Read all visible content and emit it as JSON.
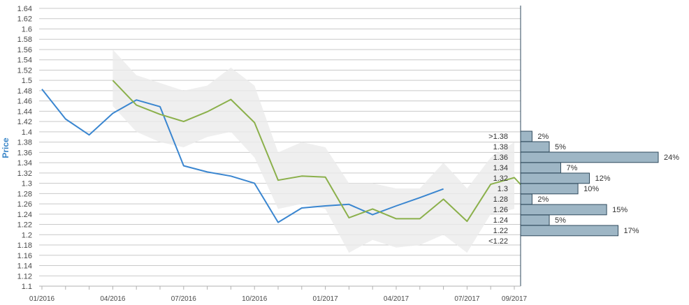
{
  "chart_data": {
    "type": "line",
    "ylabel": "Price",
    "ylim": [
      1.1,
      1.64
    ],
    "y_ticks": [
      "1.1",
      "1.12",
      "1.14",
      "1.16",
      "1.18",
      "1.2",
      "1.22",
      "1.24",
      "1.26",
      "1.28",
      "1.3",
      "1.32",
      "1.34",
      "1.36",
      "1.38",
      "1.4",
      "1.42",
      "1.44",
      "1.46",
      "1.48",
      "1.5",
      "1.52",
      "1.54",
      "1.56",
      "1.58",
      "1.6",
      "1.62",
      "1.64"
    ],
    "x_ticks": [
      "01/2016",
      "04/2016",
      "07/2016",
      "10/2016",
      "01/2017",
      "04/2017",
      "07/2017",
      "09/2017"
    ],
    "grid": "horizontal",
    "colors": {
      "blue": "#3a86d0",
      "green": "#8bb04b",
      "band": "#ebebeb",
      "bar_fill": "#9eb6c5",
      "bar_stroke": "#2f4a5c"
    },
    "series": [
      {
        "color": "#3a86d0",
        "points": [
          [
            "2016-01",
            1.483
          ],
          [
            "2016-02",
            1.425
          ],
          [
            "2016-03",
            1.394
          ],
          [
            "2016-04",
            1.436
          ],
          [
            "2016-05",
            1.462
          ],
          [
            "2016-06",
            1.449
          ],
          [
            "2016-07",
            1.334
          ],
          [
            "2016-08",
            1.322
          ],
          [
            "2016-09",
            1.314
          ],
          [
            "2016-10",
            1.3
          ],
          [
            "2016-11",
            1.224
          ],
          [
            "2016-12",
            1.252
          ],
          [
            "2017-01",
            1.256
          ],
          [
            "2017-02",
            1.259
          ],
          [
            "2017-03",
            1.239
          ],
          [
            "2017-04",
            1.256
          ],
          [
            "2017-05",
            1.272
          ],
          [
            "2017-06",
            1.289
          ]
        ]
      },
      {
        "color": "#8bb04b",
        "points": [
          [
            "2016-04",
            1.5
          ],
          [
            "2016-05",
            1.452
          ],
          [
            "2016-06",
            1.434
          ],
          [
            "2016-07",
            1.42
          ],
          [
            "2016-08",
            1.439
          ],
          [
            "2016-09",
            1.463
          ],
          [
            "2016-10",
            1.418
          ],
          [
            "2016-11",
            1.306
          ],
          [
            "2016-12",
            1.314
          ],
          [
            "2017-01",
            1.312
          ],
          [
            "2017-02",
            1.233
          ],
          [
            "2017-03",
            1.25
          ],
          [
            "2017-04",
            1.231
          ],
          [
            "2017-05",
            1.231
          ],
          [
            "2017-06",
            1.269
          ],
          [
            "2017-07",
            1.226
          ],
          [
            "2017-08",
            1.298
          ],
          [
            "2017-09",
            1.311
          ],
          [
            "2017-09-10",
            1.296
          ]
        ]
      }
    ],
    "band": {
      "upper": [
        [
          "2016-04",
          1.56
        ],
        [
          "2016-05",
          1.51
        ],
        [
          "2016-06",
          1.495
        ],
        [
          "2016-07",
          1.48
        ],
        [
          "2016-08",
          1.49
        ],
        [
          "2016-09",
          1.525
        ],
        [
          "2016-10",
          1.49
        ],
        [
          "2016-11",
          1.36
        ],
        [
          "2016-12",
          1.38
        ],
        [
          "2017-01",
          1.37
        ],
        [
          "2017-02",
          1.3
        ],
        [
          "2017-03",
          1.3
        ],
        [
          "2017-04",
          1.29
        ],
        [
          "2017-05",
          1.29
        ],
        [
          "2017-06",
          1.34
        ],
        [
          "2017-07",
          1.29
        ],
        [
          "2017-08",
          1.35
        ],
        [
          "2017-09",
          1.38
        ]
      ],
      "lower": [
        [
          "2016-04",
          1.45
        ],
        [
          "2016-05",
          1.4
        ],
        [
          "2016-06",
          1.38
        ],
        [
          "2016-07",
          1.37
        ],
        [
          "2016-08",
          1.39
        ],
        [
          "2016-09",
          1.4
        ],
        [
          "2016-10",
          1.35
        ],
        [
          "2016-11",
          1.25
        ],
        [
          "2016-12",
          1.26
        ],
        [
          "2017-01",
          1.25
        ],
        [
          "2017-02",
          1.165
        ],
        [
          "2017-03",
          1.19
        ],
        [
          "2017-04",
          1.175
        ],
        [
          "2017-05",
          1.18
        ],
        [
          "2017-06",
          1.2
        ],
        [
          "2017-07",
          1.165
        ],
        [
          "2017-08",
          1.24
        ],
        [
          "2017-09",
          1.25
        ]
      ]
    },
    "distribution": [
      {
        "label": ">1.38",
        "value": 2,
        "pct": "2%"
      },
      {
        "label": "1.38",
        "value": 5,
        "pct": "5%"
      },
      {
        "label": "1.36",
        "value": 24,
        "pct": "24%"
      },
      {
        "label": "1.34",
        "value": 7,
        "pct": "7%"
      },
      {
        "label": "1.32",
        "value": 12,
        "pct": "12%"
      },
      {
        "label": "1.3",
        "value": 10,
        "pct": "10%"
      },
      {
        "label": "1.28",
        "value": 2,
        "pct": "2%"
      },
      {
        "label": "1.26",
        "value": 15,
        "pct": "15%"
      },
      {
        "label": "1.24",
        "value": 5,
        "pct": "5%"
      },
      {
        "label": "1.22",
        "value": 17,
        "pct": "17%"
      },
      {
        "label": "<1.22",
        "value": null,
        "pct": ""
      }
    ]
  }
}
